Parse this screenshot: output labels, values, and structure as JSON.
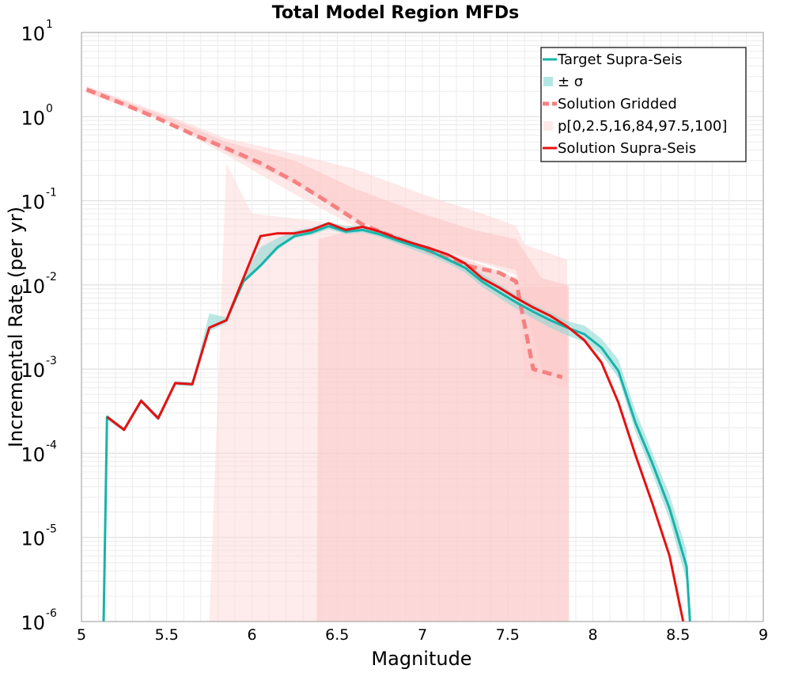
{
  "chart_data": {
    "type": "line",
    "title": "Total Model Region MFDs",
    "xlabel": "Magnitude",
    "ylabel": "Incremental Rate (per yr)",
    "xlim": [
      5,
      9
    ],
    "ylim_log10": [
      -6,
      1
    ],
    "yscale": "log",
    "grid": true,
    "legend_position": "top-right",
    "x_ticks": [
      "5",
      "5.5",
      "6",
      "6.5",
      "7",
      "7.5",
      "8",
      "8.5",
      "9"
    ],
    "y_ticks": [
      {
        "base": "10",
        "exp": "-6"
      },
      {
        "base": "10",
        "exp": "-5"
      },
      {
        "base": "10",
        "exp": "-4"
      },
      {
        "base": "10",
        "exp": "-3"
      },
      {
        "base": "10",
        "exp": "-2"
      },
      {
        "base": "10",
        "exp": "-1"
      },
      {
        "base": "10",
        "exp": "0"
      },
      {
        "base": "10",
        "exp": "1"
      }
    ],
    "legend": [
      {
        "label": "Target Supra-Seis",
        "color": "#17b3aa",
        "style": "line"
      },
      {
        "label": "± σ",
        "color": "#b3e6e3",
        "style": "band"
      },
      {
        "label": "Solution Gridded",
        "color": "#f58080",
        "style": "dashed"
      },
      {
        "label": "p[0,2.5,16,84,97.5,100]",
        "color": "#fde8e8",
        "style": "band"
      },
      {
        "label": "Solution Supra-Seis",
        "color": "#e81010",
        "style": "line"
      }
    ],
    "series": {
      "target_supra_seis": {
        "x": [
          5.13,
          5.15,
          5.25,
          5.35,
          5.45,
          5.55,
          5.65,
          5.75,
          5.85,
          5.95,
          6.05,
          6.15,
          6.25,
          6.35,
          6.45,
          6.55,
          6.65,
          6.75,
          6.85,
          6.95,
          7.05,
          7.15,
          7.25,
          7.35,
          7.45,
          7.55,
          7.65,
          7.75,
          7.85,
          7.95,
          8.05,
          8.15,
          8.25,
          8.35,
          8.45,
          8.55,
          8.57
        ],
        "y": [
          1e-06,
          0.00027,
          0.00019,
          0.00042,
          0.00026,
          0.00068,
          0.00066,
          0.0031,
          0.0038,
          0.011,
          0.017,
          0.028,
          0.038,
          0.042,
          0.05,
          0.043,
          0.045,
          0.04,
          0.034,
          0.029,
          0.025,
          0.02,
          0.016,
          0.011,
          0.0082,
          0.0062,
          0.0048,
          0.0038,
          0.0031,
          0.0026,
          0.0018,
          0.00095,
          0.00023,
          7.5e-05,
          2.2e-05,
          4.5e-06,
          1e-06
        ]
      },
      "target_sigma_band": {
        "x": [
          5.15,
          5.25,
          5.35,
          5.45,
          5.55,
          5.65,
          5.75,
          5.85,
          5.95,
          6.05,
          6.15,
          6.25,
          6.35,
          6.45,
          6.55,
          6.65,
          6.75,
          6.85,
          6.95,
          7.05,
          7.15,
          7.25,
          7.35,
          7.45,
          7.55,
          7.65,
          7.75,
          7.85,
          7.95,
          8.05,
          8.15,
          8.25,
          8.35,
          8.45,
          8.55
        ],
        "lower": [
          0.00025,
          0.00018,
          0.0004,
          0.00024,
          0.00064,
          0.00062,
          0.0028,
          0.0035,
          0.0105,
          0.016,
          0.026,
          0.036,
          0.039,
          0.046,
          0.04,
          0.042,
          0.037,
          0.031,
          0.026,
          0.022,
          0.018,
          0.014,
          0.0095,
          0.007,
          0.0052,
          0.004,
          0.0031,
          0.0025,
          0.0021,
          0.0015,
          0.00078,
          0.00018,
          5.7e-05,
          1.6e-05,
          3e-06
        ],
        "upper": [
          0.00029,
          0.0002,
          0.00045,
          0.00028,
          0.00072,
          0.0007,
          0.0046,
          0.0041,
          0.0125,
          0.028,
          0.036,
          0.044,
          0.048,
          0.056,
          0.05,
          0.051,
          0.046,
          0.039,
          0.033,
          0.028,
          0.023,
          0.019,
          0.0135,
          0.0102,
          0.0077,
          0.0059,
          0.0047,
          0.0037,
          0.0033,
          0.0023,
          0.0013,
          0.00032,
          0.0001,
          3.2e-05,
          7e-06
        ]
      },
      "solution_gridded": {
        "x": [
          5.03,
          5.25,
          5.45,
          5.65,
          5.85,
          6.05,
          6.25,
          6.45,
          6.65,
          6.85,
          7.05,
          7.25,
          7.45,
          7.55,
          7.65,
          7.82
        ],
        "y": [
          2.1,
          1.4,
          0.95,
          0.62,
          0.42,
          0.28,
          0.17,
          0.095,
          0.052,
          0.036,
          0.025,
          0.017,
          0.014,
          0.011,
          0.001,
          0.0008
        ]
      },
      "solution_gridded_range_band": {
        "x": [
          5.03,
          5.5,
          5.85,
          6.25,
          6.6,
          7.0,
          7.4,
          7.55,
          7.6,
          7.85
        ],
        "lower": [
          1.9,
          0.85,
          0.35,
          0.12,
          0.05,
          0.028,
          0.017,
          0.013,
          0.0008,
          0.0006
        ],
        "upper": [
          2.3,
          1.05,
          0.55,
          0.36,
          0.24,
          0.12,
          0.065,
          0.05,
          0.03,
          0.02
        ]
      },
      "solution_gridded_inner_band": {
        "x": [
          5.03,
          5.5,
          5.85,
          6.25,
          6.6,
          7.0,
          7.3,
          7.55,
          7.7,
          7.85
        ],
        "lower": [
          1.95,
          0.9,
          0.38,
          0.16,
          0.06,
          0.03,
          0.02,
          0.015,
          0.001,
          0.0007
        ],
        "upper": [
          2.25,
          1.0,
          0.5,
          0.3,
          0.14,
          0.07,
          0.045,
          0.035,
          0.012,
          0.01
        ]
      },
      "solution_supra_range_band": {
        "x": [
          5.75,
          5.85,
          6.0,
          6.3,
          6.6,
          7.0,
          7.4,
          7.55,
          7.6,
          7.86
        ],
        "lower": [
          1e-06,
          1e-06,
          1e-06,
          1e-06,
          1e-06,
          1e-06,
          1e-06,
          1e-06,
          1e-06,
          1e-06
        ],
        "upper": [
          1e-06,
          0.28,
          0.07,
          0.06,
          0.05,
          0.03,
          0.015,
          0.012,
          0.01,
          0.01
        ]
      },
      "solution_supra_inner_band": {
        "x": [
          6.38,
          6.39,
          6.6,
          7.0,
          7.4,
          7.55,
          7.58,
          7.86
        ],
        "lower": [
          1e-06,
          1e-06,
          1e-06,
          1e-06,
          1e-06,
          1e-06,
          1e-06,
          1e-06
        ],
        "upper": [
          1e-06,
          0.035,
          0.045,
          0.03,
          0.016,
          0.012,
          0.0095,
          0.0095
        ]
      },
      "solution_supra_seis": {
        "x": [
          5.15,
          5.25,
          5.35,
          5.45,
          5.55,
          5.65,
          5.75,
          5.85,
          5.95,
          6.05,
          6.15,
          6.25,
          6.35,
          6.45,
          6.55,
          6.65,
          6.75,
          6.85,
          6.95,
          7.05,
          7.15,
          7.25,
          7.35,
          7.45,
          7.55,
          7.65,
          7.75,
          7.85,
          7.95,
          8.05,
          8.15,
          8.25,
          8.35,
          8.45,
          8.53
        ],
        "y": [
          0.00027,
          0.00019,
          0.00042,
          0.00026,
          0.00068,
          0.00066,
          0.0031,
          0.0038,
          0.012,
          0.038,
          0.041,
          0.041,
          0.045,
          0.054,
          0.045,
          0.049,
          0.043,
          0.036,
          0.031,
          0.027,
          0.023,
          0.018,
          0.012,
          0.0093,
          0.007,
          0.0054,
          0.0043,
          0.0032,
          0.0022,
          0.0012,
          0.0004,
          9.5e-05,
          2.5e-05,
          6e-06,
          1e-06
        ]
      }
    }
  }
}
